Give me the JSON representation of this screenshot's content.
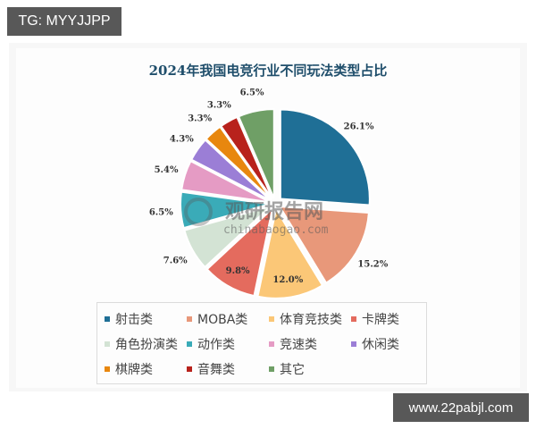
{
  "overlay": {
    "top_tag": "TG: MYYJJPP",
    "bottom_tag": "www.22pabjl.com"
  },
  "watermark": {
    "cn": "观研报告网",
    "en": "chinabaogao.com"
  },
  "chart_data": {
    "type": "pie",
    "title": "2024年我国电竞行业不同玩法类型占比",
    "exploded": true,
    "start_angle": "top (12 o'clock), clockwise",
    "legend_position": "bottom",
    "categories": [
      "射击类",
      "MOBA类",
      "体育竞技类",
      "卡牌类",
      "角色扮演类",
      "动作类",
      "竞速类",
      "休闲类",
      "棋牌类",
      "音舞类",
      "其它"
    ],
    "values": [
      26.1,
      15.2,
      12.0,
      9.8,
      7.6,
      6.5,
      5.4,
      4.3,
      3.3,
      3.3,
      6.5
    ],
    "labels": [
      "26.1%",
      "15.2%",
      "12.0%",
      "9.8%",
      "7.6%",
      "6.5%",
      "5.4%",
      "4.3%",
      "3.3%",
      "3.3%",
      "6.5%"
    ],
    "colors": [
      "#1f6f96",
      "#e8987a",
      "#fbc777",
      "#e46b5e",
      "#d3e3d4",
      "#3aabb8",
      "#e59bc4",
      "#9b7ed6",
      "#e8870e",
      "#b8221c",
      "#6f9f66"
    ],
    "unit": "%"
  },
  "legend": {
    "items": [
      {
        "label": "射击类",
        "color": "#1f6f96"
      },
      {
        "label": "MOBA类",
        "color": "#e8987a"
      },
      {
        "label": "体育竞技类",
        "color": "#fbc777"
      },
      {
        "label": "卡牌类",
        "color": "#e46b5e"
      },
      {
        "label": "角色扮演类",
        "color": "#d3e3d4"
      },
      {
        "label": "动作类",
        "color": "#3aabb8"
      },
      {
        "label": "竞速类",
        "color": "#e59bc4"
      },
      {
        "label": "休闲类",
        "color": "#9b7ed6"
      },
      {
        "label": "棋牌类",
        "color": "#e8870e"
      },
      {
        "label": "音舞类",
        "color": "#b8221c"
      },
      {
        "label": "其它",
        "color": "#6f9f66"
      }
    ]
  }
}
